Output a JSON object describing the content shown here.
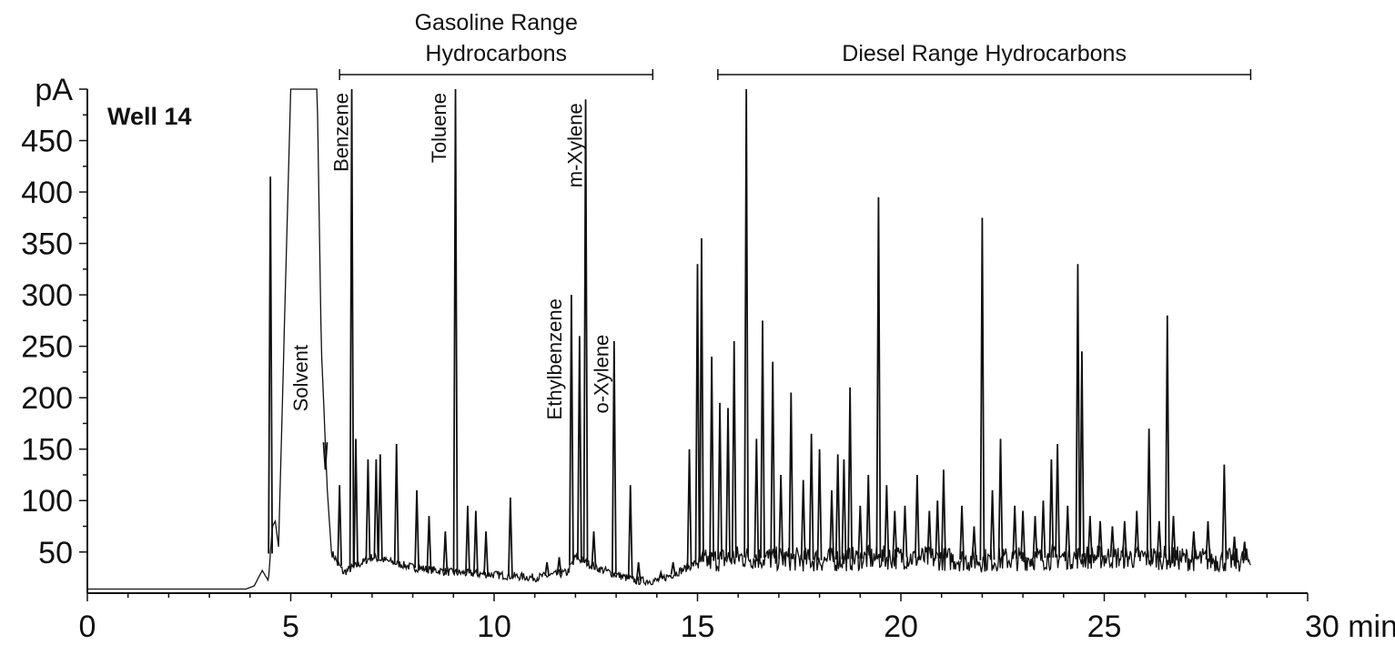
{
  "chart_data": {
    "type": "line",
    "title": "Well 14",
    "xlabel": "",
    "ylabel": "pA",
    "x_unit_label": "30 min",
    "xlim": [
      0,
      30
    ],
    "ylim": [
      10,
      500
    ],
    "x_ticks": [
      {
        "value": 0,
        "label": "0"
      },
      {
        "value": 5,
        "label": "5"
      },
      {
        "value": 10,
        "label": "10"
      },
      {
        "value": 15,
        "label": "15"
      },
      {
        "value": 20,
        "label": "20"
      },
      {
        "value": 25,
        "label": "25"
      },
      {
        "value": 30,
        "label": "30 min"
      }
    ],
    "y_ticks": [
      {
        "value": 50,
        "label": "50"
      },
      {
        "value": 100,
        "label": "100"
      },
      {
        "value": 150,
        "label": "150"
      },
      {
        "value": 200,
        "label": "200"
      },
      {
        "value": 250,
        "label": "250"
      },
      {
        "value": 300,
        "label": "300"
      },
      {
        "value": 350,
        "label": "350"
      },
      {
        "value": 400,
        "label": "400"
      },
      {
        "value": 450,
        "label": "450"
      },
      {
        "value": 500,
        "label": "pA"
      }
    ],
    "baseline": [
      [
        0,
        14
      ],
      [
        3.9,
        14
      ],
      [
        4.1,
        17
      ],
      [
        4.3,
        32
      ],
      [
        4.45,
        22
      ],
      [
        4.55,
        75
      ],
      [
        4.62,
        80
      ],
      [
        4.7,
        55
      ],
      [
        5.0,
        500
      ],
      [
        5.65,
        500
      ],
      [
        5.75,
        250
      ],
      [
        5.9,
        110
      ],
      [
        6.0,
        50
      ],
      [
        6.3,
        30
      ],
      [
        7.0,
        45
      ],
      [
        8.0,
        35
      ],
      [
        9.0,
        30
      ],
      [
        10.0,
        28
      ],
      [
        11.0,
        25
      ],
      [
        11.8,
        30
      ],
      [
        12.0,
        45
      ],
      [
        12.5,
        35
      ],
      [
        13.0,
        28
      ],
      [
        13.5,
        22
      ],
      [
        14.0,
        22
      ],
      [
        14.5,
        30
      ],
      [
        15.0,
        40
      ],
      [
        16.0,
        45
      ],
      [
        18.0,
        42
      ],
      [
        20.0,
        45
      ],
      [
        22.0,
        42
      ],
      [
        24.0,
        45
      ],
      [
        26.0,
        45
      ],
      [
        28.0,
        42
      ],
      [
        28.6,
        42
      ]
    ],
    "noise": {
      "x_range": [
        15.0,
        28.6
      ],
      "amplitude": 12
    },
    "peaks": [
      [
        4.5,
        415
      ],
      [
        5.85,
        130
      ],
      [
        6.2,
        115
      ],
      [
        6.5,
        500
      ],
      [
        6.6,
        160
      ],
      [
        6.9,
        140
      ],
      [
        7.1,
        140
      ],
      [
        7.2,
        145
      ],
      [
        7.6,
        155
      ],
      [
        8.1,
        110
      ],
      [
        8.4,
        85
      ],
      [
        8.8,
        70
      ],
      [
        9.05,
        500
      ],
      [
        9.35,
        95
      ],
      [
        9.55,
        90
      ],
      [
        9.8,
        70
      ],
      [
        10.4,
        103
      ],
      [
        11.3,
        40
      ],
      [
        11.6,
        45
      ],
      [
        11.9,
        300
      ],
      [
        12.1,
        260
      ],
      [
        12.25,
        490
      ],
      [
        12.45,
        70
      ],
      [
        12.95,
        255
      ],
      [
        13.35,
        115
      ],
      [
        13.55,
        40
      ],
      [
        14.1,
        30
      ],
      [
        14.4,
        40
      ],
      [
        14.8,
        150
      ],
      [
        15.0,
        330
      ],
      [
        15.1,
        355
      ],
      [
        15.35,
        240
      ],
      [
        15.55,
        195
      ],
      [
        15.75,
        190
      ],
      [
        15.9,
        255
      ],
      [
        16.2,
        500
      ],
      [
        16.45,
        160
      ],
      [
        16.6,
        275
      ],
      [
        16.85,
        235
      ],
      [
        17.05,
        125
      ],
      [
        17.3,
        205
      ],
      [
        17.6,
        120
      ],
      [
        17.8,
        165
      ],
      [
        18.0,
        150
      ],
      [
        18.3,
        110
      ],
      [
        18.45,
        145
      ],
      [
        18.6,
        140
      ],
      [
        18.75,
        210
      ],
      [
        19.0,
        95
      ],
      [
        19.2,
        125
      ],
      [
        19.45,
        395
      ],
      [
        19.65,
        115
      ],
      [
        19.85,
        90
      ],
      [
        20.1,
        95
      ],
      [
        20.4,
        125
      ],
      [
        20.7,
        90
      ],
      [
        20.9,
        100
      ],
      [
        21.05,
        130
      ],
      [
        21.5,
        95
      ],
      [
        21.8,
        75
      ],
      [
        22.0,
        375
      ],
      [
        22.25,
        110
      ],
      [
        22.45,
        160
      ],
      [
        22.8,
        95
      ],
      [
        23.0,
        90
      ],
      [
        23.3,
        85
      ],
      [
        23.5,
        100
      ],
      [
        23.7,
        140
      ],
      [
        23.85,
        155
      ],
      [
        24.1,
        95
      ],
      [
        24.35,
        330
      ],
      [
        24.45,
        245
      ],
      [
        24.65,
        85
      ],
      [
        24.9,
        80
      ],
      [
        25.2,
        75
      ],
      [
        25.5,
        80
      ],
      [
        25.8,
        90
      ],
      [
        26.1,
        170
      ],
      [
        26.35,
        80
      ],
      [
        26.55,
        280
      ],
      [
        26.7,
        85
      ],
      [
        27.2,
        70
      ],
      [
        27.55,
        80
      ],
      [
        27.95,
        135
      ],
      [
        28.2,
        65
      ],
      [
        28.45,
        60
      ]
    ],
    "annotations": [
      {
        "text": "Solvent",
        "x": 5.5,
        "y": 255
      },
      {
        "text": "Benzene",
        "x": 6.5,
        "y": 500
      },
      {
        "text": "Toluene",
        "x": 8.9,
        "y": 500
      },
      {
        "text": "Ethylbenzene",
        "x": 11.75,
        "y": 300
      },
      {
        "text": "m-Xylene",
        "x": 12.25,
        "y": 490
      },
      {
        "text": "o-Xylene",
        "x": 12.9,
        "y": 265
      }
    ],
    "ranges": [
      {
        "label_lines": [
          "Gasoline Range",
          "Hydrocarbons"
        ],
        "x_start": 6.2,
        "x_end": 13.9
      },
      {
        "label_lines": [
          "Diesel Range Hydrocarbons"
        ],
        "x_start": 15.5,
        "x_end": 28.6
      }
    ],
    "grid": false,
    "legend": "none",
    "colors": {
      "line": "#111111",
      "axis": "#111111"
    }
  }
}
